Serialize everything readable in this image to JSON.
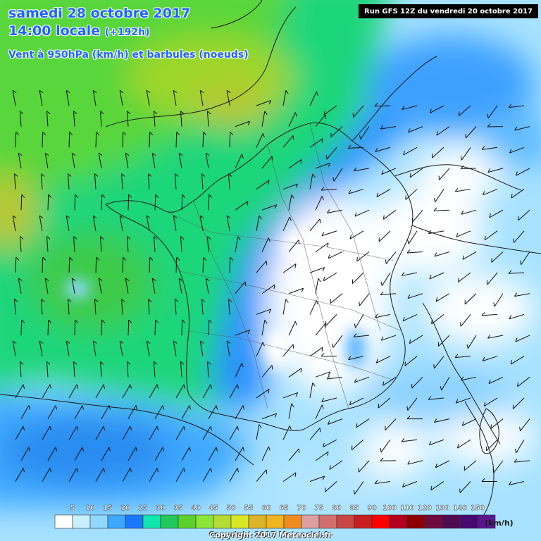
{
  "header": {
    "date_line": "samedi 28 octobre 2017",
    "time_line": "14:00 locale",
    "lead_time": "(+192h)",
    "parameter_line": "Vent à 950hPa (km/h) et barbules (noeuds)",
    "run_info": "Run GFS 12Z du vendredi 20 octobre 2017"
  },
  "legend": {
    "unit": "(km/h)",
    "values": [
      5,
      10,
      15,
      20,
      25,
      30,
      35,
      40,
      45,
      50,
      55,
      60,
      65,
      70,
      75,
      80,
      85,
      90,
      100,
      110,
      120,
      130,
      140,
      150
    ],
    "colors": [
      "#ffffff",
      "#c8f0ff",
      "#90d8ff",
      "#3ca8ff",
      "#1a78ff",
      "#10e6b0",
      "#22c85c",
      "#5ad22a",
      "#8ce63a",
      "#b4dc32",
      "#d8e628",
      "#dcb428",
      "#f0b41e",
      "#f08c1e",
      "#dca0a0",
      "#d26e6e",
      "#c84646",
      "#c81e1e",
      "#ff0000",
      "#b4001e",
      "#8c0000",
      "#6e0a3c",
      "#500a50",
      "#460a6e",
      "#5a148c"
    ]
  },
  "copyright": "Copyright 2017 Meteociel.fr",
  "colors": {
    "title_blue": "#1e64ff",
    "border": "#1a1a1a"
  }
}
